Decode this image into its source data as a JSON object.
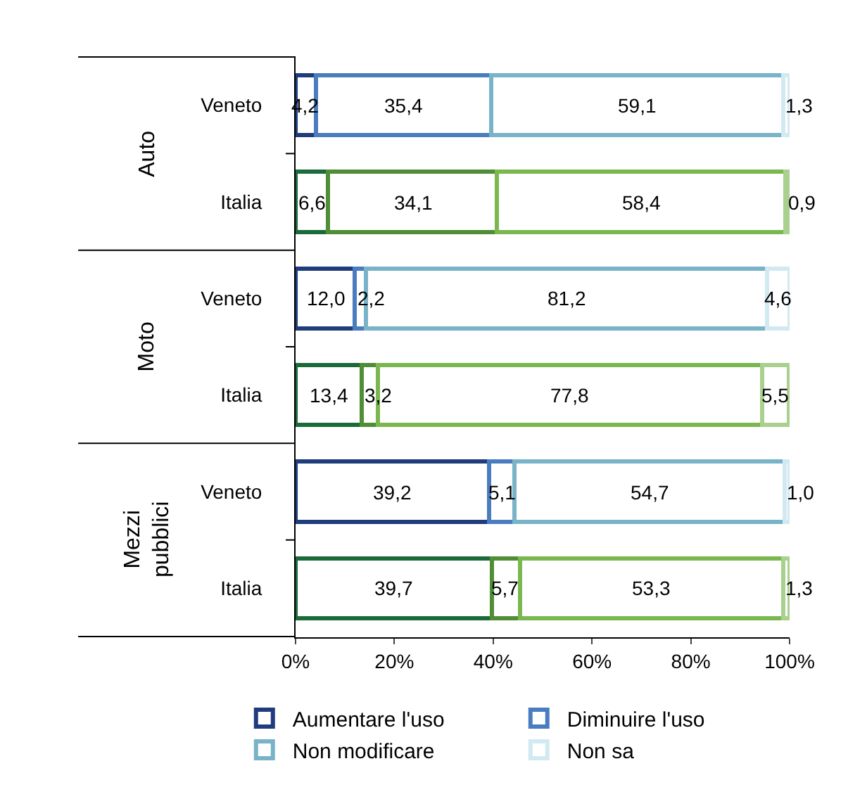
{
  "chart_data": {
    "type": "bar",
    "orientation": "horizontal",
    "stacked": true,
    "categories": [
      "Veneto",
      "Italia",
      "Veneto",
      "Italia",
      "Veneto",
      "Italia"
    ],
    "annotations": [
      "Auto",
      "Moto",
      "Mezzi pubblici"
    ],
    "series": [
      {
        "name": "Aumentare l'uso",
        "color": "#1f3c7c",
        "colors": [
          "#1f3c7c",
          "#1b6b3a",
          "#1f3c7c",
          "#1b6b3a",
          "#1f3c7c",
          "#1b6b3a"
        ],
        "values": [
          4.2,
          6.6,
          12.0,
          13.4,
          39.2,
          39.7
        ],
        "value_labels": [
          "4,2",
          "6,6",
          "12,0",
          "13,4",
          "39,2",
          "39,7"
        ]
      },
      {
        "name": "Diminuire l'uso",
        "color": "#4a7cc0",
        "colors": [
          "#4a7cc0",
          "#4f8e36",
          "#4a7cc0",
          "#4f8e36",
          "#4a7cc0",
          "#4f8e36"
        ],
        "values": [
          35.4,
          34.1,
          2.2,
          3.2,
          5.1,
          5.7
        ],
        "value_labels": [
          "35,4",
          "34,1",
          "2,2",
          "3,2",
          "5,1",
          "5,7"
        ]
      },
      {
        "name": "Non modificare",
        "color": "#78b3c8",
        "colors": [
          "#78b3c8",
          "#7ab84f",
          "#78b3c8",
          "#7ab84f",
          "#78b3c8",
          "#7ab84f"
        ],
        "values": [
          59.1,
          58.4,
          81.2,
          77.8,
          54.7,
          53.3
        ],
        "value_labels": [
          "59,1",
          "58,4",
          "81,2",
          "77,8",
          "54,7",
          "53,3"
        ]
      },
      {
        "name": "Non sa",
        "color": "#d2e9f1",
        "colors": [
          "#d2e9f1",
          "#a9d08e",
          "#d2e9f1",
          "#a9d08e",
          "#d2e9f1",
          "#a9d08e"
        ],
        "values": [
          1.3,
          0.9,
          4.6,
          5.5,
          1.0,
          1.3
        ],
        "value_labels": [
          "1,3",
          "0,9",
          "4,6",
          "5,5",
          "1,0",
          "1,3"
        ]
      }
    ],
    "xlim": [
      0,
      100
    ],
    "xticks": [
      {
        "value": 0,
        "label": "0%"
      },
      {
        "value": 20,
        "label": "20%"
      },
      {
        "value": 40,
        "label": "40%"
      },
      {
        "value": 60,
        "label": "60%"
      },
      {
        "value": 80,
        "label": "80%"
      },
      {
        "value": 100,
        "label": "100%"
      }
    ],
    "legend": "bottom"
  }
}
